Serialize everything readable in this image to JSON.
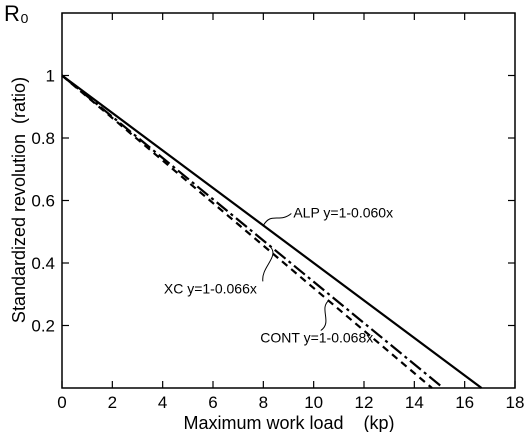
{
  "corner_label": "R₀",
  "chart_data": {
    "type": "line",
    "title": "",
    "xlabel": "Maximum work load    (kp)",
    "ylabel": "Standardized revolution  (ratio)",
    "xlim": [
      0,
      18
    ],
    "ylim": [
      0,
      1.2
    ],
    "xticks": [
      0,
      2,
      4,
      6,
      8,
      10,
      12,
      14,
      16,
      18
    ],
    "yticks": [
      0.2,
      0.4,
      0.6,
      0.8,
      1
    ],
    "xtick_labels": [
      "0",
      "2",
      "4",
      "6",
      "8",
      "10",
      "12",
      "14",
      "16",
      "18"
    ],
    "ytick_labels": [
      "0.2",
      "0.4",
      "0.6",
      "0.8",
      "1"
    ],
    "grid": false,
    "series": [
      {
        "name": "ALP",
        "intercept": 1,
        "slope": -0.06,
        "x": [
          0,
          16.67
        ],
        "y": [
          1,
          0
        ],
        "style": "solid",
        "color": "#000000",
        "label": "ALP y=1-0.060x",
        "anchor": [
          8.0,
          0.52
        ]
      },
      {
        "name": "XC",
        "intercept": 1,
        "slope": -0.066,
        "x": [
          0,
          15.15
        ],
        "y": [
          1,
          0
        ],
        "style": "dash-dot",
        "color": "#000000",
        "label": "XC y=1-0.066x",
        "anchor": [
          8.3,
          0.45
        ]
      },
      {
        "name": "CONT",
        "intercept": 1,
        "slope": -0.068,
        "x": [
          0,
          14.7
        ],
        "y": [
          1,
          0
        ],
        "style": "dashed",
        "color": "#000000",
        "label": "CONT y=1-0.068x",
        "anchor": [
          10.6,
          0.28
        ]
      }
    ]
  }
}
